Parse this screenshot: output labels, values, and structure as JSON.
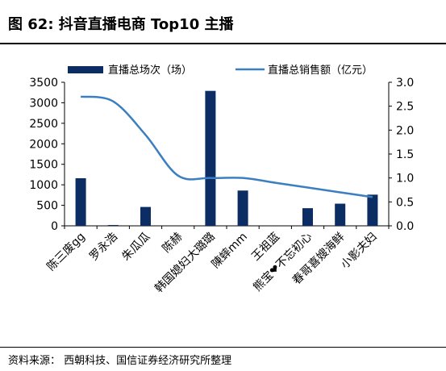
{
  "header": {
    "title": "图 62:  抖音直播电商 Top10 主播"
  },
  "footer": {
    "source": "资料来源：  西朝科技、国信证券经济研究所整理"
  },
  "colors": {
    "bar": "#0b2d63",
    "line": "#3b7fc0",
    "axis": "#000000",
    "tick": "#000000"
  },
  "chart_data": {
    "type": "bar+line",
    "title": "",
    "xlabel": "",
    "ylabel": "",
    "categories": [
      "陈三废gg",
      "罗永浩",
      "朱瓜瓜",
      "陈赫",
      "韩国媳妇大璐璐",
      "陳蟀mm",
      "王祖蓝",
      "熊宝❤不忘初心",
      "春哥喜嫂海鲜",
      "小影夫妇"
    ],
    "series": [
      {
        "name": "直播总场次（场）",
        "type": "bar",
        "axis": "left",
        "values": [
          1160,
          20,
          460,
          0,
          3290,
          860,
          0,
          430,
          540,
          760
        ]
      },
      {
        "name": "直播总销售额（亿元）",
        "type": "line",
        "axis": "right",
        "values": [
          2.7,
          2.6,
          1.9,
          1.05,
          1.0,
          1.0,
          0.9,
          0.8,
          0.7,
          0.6
        ]
      }
    ],
    "yleft": {
      "min": 0,
      "max": 3500,
      "ticks": [
        "0",
        "500",
        "1000",
        "1500",
        "2000",
        "2500",
        "3000",
        "3500"
      ]
    },
    "yright": {
      "min": 0,
      "max": 3,
      "ticks": [
        "0.0",
        "0.5",
        "1.0",
        "1.5",
        "2.0",
        "2.5",
        "3.0"
      ]
    },
    "legend": "top",
    "grid": false
  }
}
